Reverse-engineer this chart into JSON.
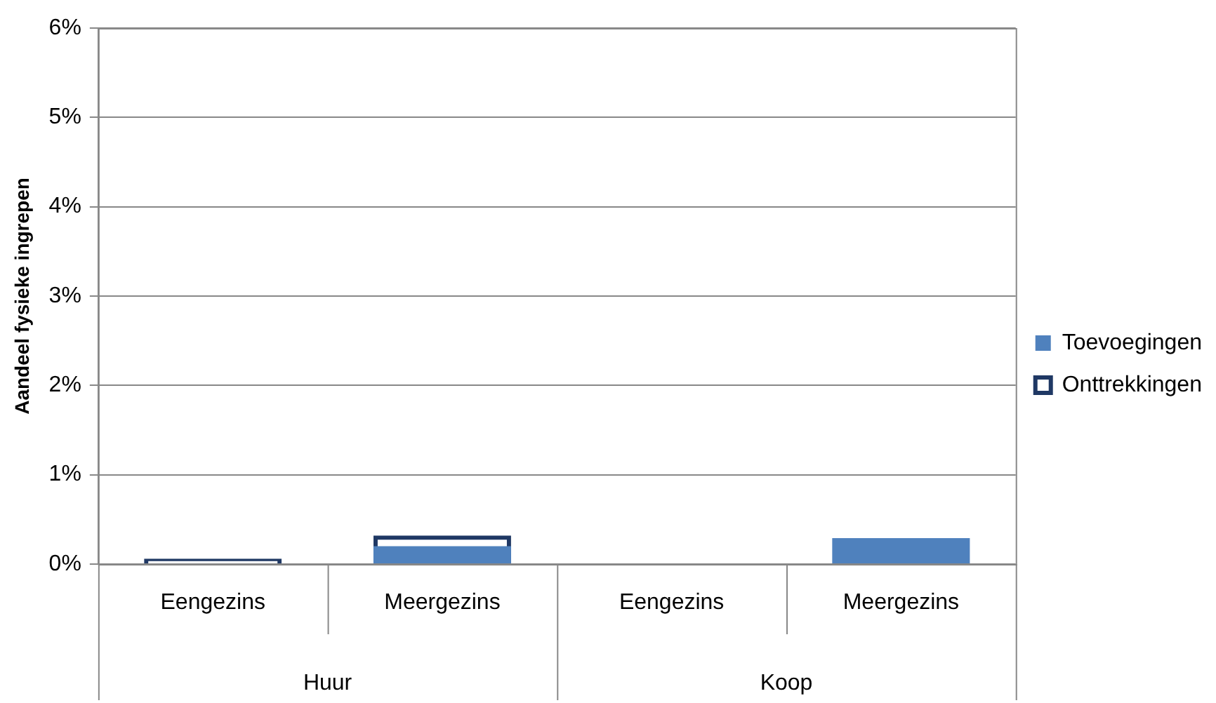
{
  "chart_data": {
    "type": "bar",
    "ylabel": "Aandeel fysieke ingrepen",
    "categories": [
      "Eengezins",
      "Meergezins",
      "Eengezins",
      "Meergezins"
    ],
    "series": [
      {
        "name": "Toevoegingen",
        "color": "#4f81bd",
        "values": [
          null,
          0.2,
          0,
          0.29
        ]
      },
      {
        "name": "Onttrekkingen",
        "color": "#1f3864",
        "values": [
          0.06,
          0.32,
          0,
          0
        ]
      }
    ],
    "annotations": [
      "Huur",
      "Koop"
    ],
    "ylim": [
      0,
      6
    ],
    "yticks": [
      {
        "value": 0,
        "label": "0%"
      },
      {
        "value": 1,
        "label": "1%"
      },
      {
        "value": 2,
        "label": "2%"
      },
      {
        "value": 3,
        "label": "3%"
      },
      {
        "value": 4,
        "label": "4%"
      },
      {
        "value": 5,
        "label": "5%"
      },
      {
        "value": 6,
        "label": "6%"
      }
    ],
    "grid": "y",
    "legend": "right"
  }
}
